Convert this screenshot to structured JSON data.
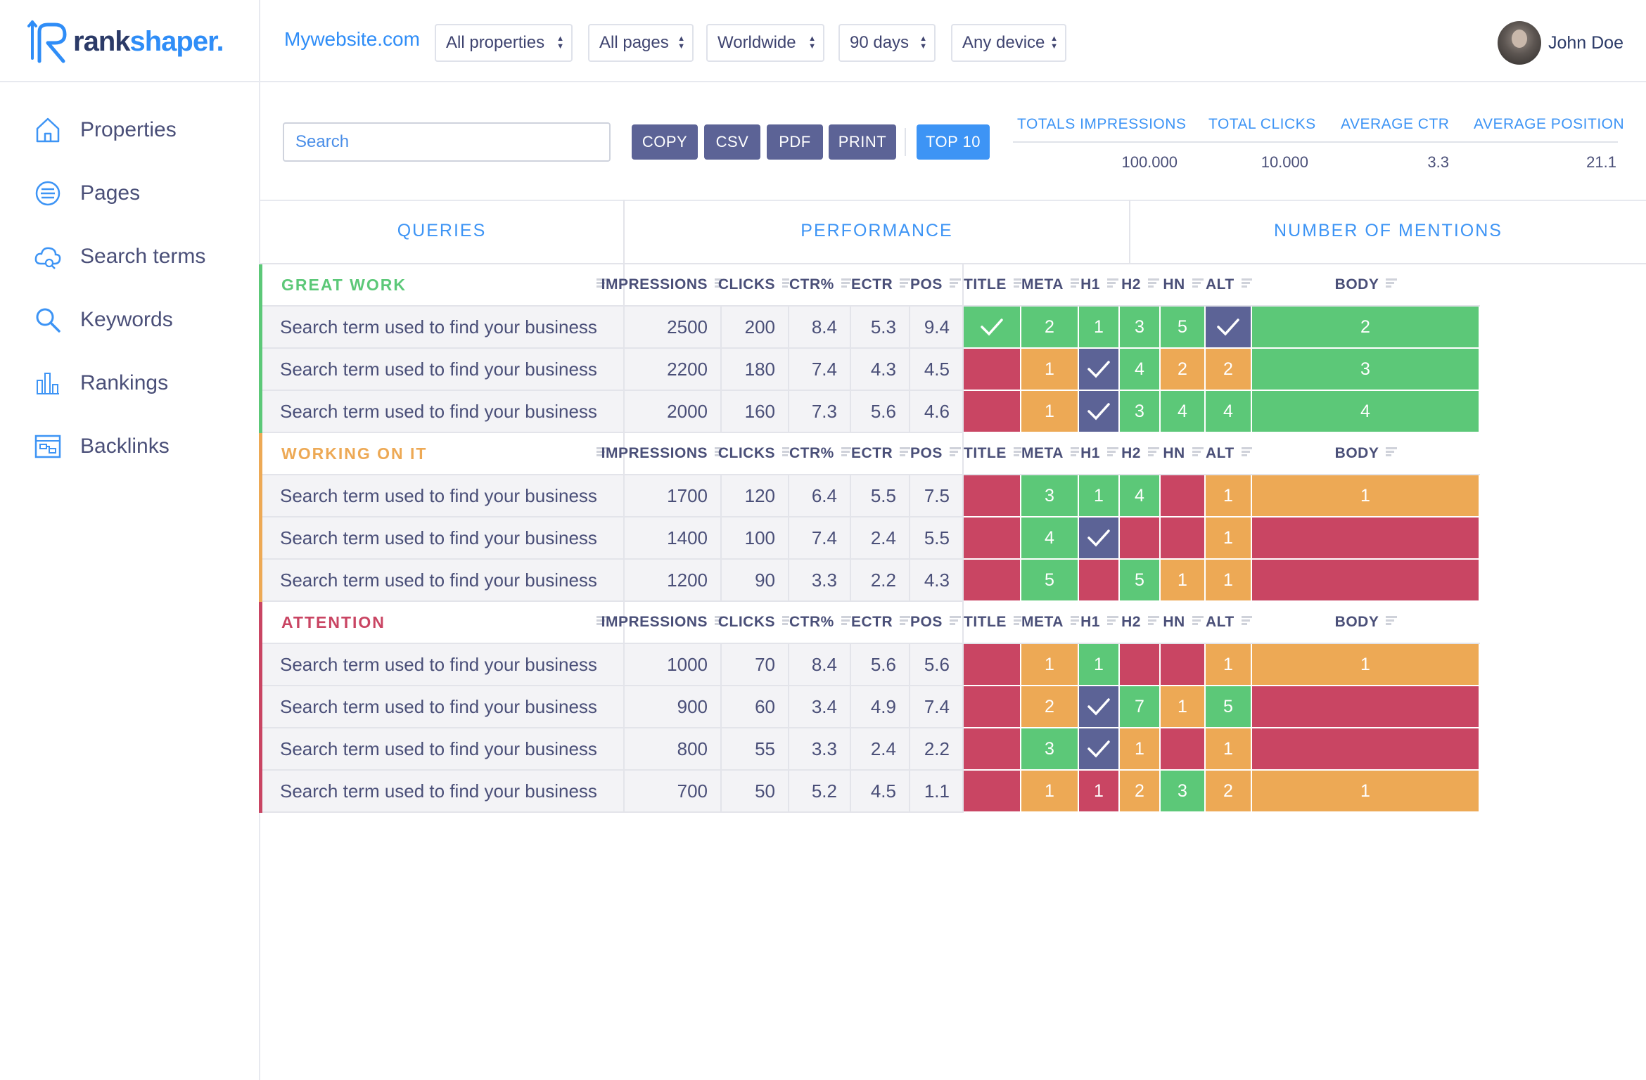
{
  "brand": {
    "name_part1": "rank",
    "name_part2": "shaper.",
    "blue": "#2f8df7",
    "navy": "#2b3a67"
  },
  "site": "Mywebsite.com",
  "filters": [
    "All properties",
    "All pages",
    "Worldwide",
    "90 days",
    "Any device"
  ],
  "user": {
    "name": "John Doe"
  },
  "nav": [
    {
      "label": "Properties",
      "icon": "home-icon"
    },
    {
      "label": "Pages",
      "icon": "list-circle-icon"
    },
    {
      "label": "Search terms",
      "icon": "cloud-icon"
    },
    {
      "label": "Keywords",
      "icon": "search-icon"
    },
    {
      "label": "Rankings",
      "icon": "bar-chart-icon"
    },
    {
      "label": "Backlinks",
      "icon": "link-board-icon"
    }
  ],
  "toolbar": {
    "search_placeholder": "Search",
    "buttons": [
      "COPY",
      "CSV",
      "PDF",
      "PRINT"
    ],
    "top_button": "TOP 10"
  },
  "totals": {
    "headers": [
      "TOTALS IMPRESSIONS",
      "TOTAL CLICKS",
      "AVERAGE CTR",
      "AVERAGE POSITION"
    ],
    "values": [
      "100.000",
      "10.000",
      "3.3",
      "21.1"
    ]
  },
  "table": {
    "group_headers": [
      "QUERIES",
      "PERFORMANCE",
      "NUMBER OF MENTIONS"
    ],
    "perf_columns": [
      "IMPRESSIONS",
      "CLICKS",
      "CTR%",
      "ECTR",
      "POS"
    ],
    "mention_columns": [
      "TITLE",
      "META",
      "H1",
      "H2",
      "HN",
      "ALT",
      "BODY"
    ],
    "colors": {
      "green": "#5cc878",
      "orange": "#eda955",
      "red": "#c94563",
      "navy": "#5c6396"
    },
    "sections": [
      {
        "title": "GREAT WORK",
        "color": "#5cc878",
        "rows": [
          {
            "query": "Search term used to find your business",
            "perf": [
              "2500",
              "200",
              "8.4",
              "5.3",
              "9.4"
            ],
            "mentions": [
              [
                "green",
                "check"
              ],
              [
                "green",
                "2"
              ],
              [
                "green",
                "1"
              ],
              [
                "green",
                "3"
              ],
              [
                "green",
                "5"
              ],
              [
                "navy",
                "check"
              ],
              [
                "green",
                "2"
              ]
            ]
          },
          {
            "query": "Search term used to find your business",
            "perf": [
              "2200",
              "180",
              "7.4",
              "4.3",
              "4.5"
            ],
            "mentions": [
              [
                "red",
                ""
              ],
              [
                "orange",
                "1"
              ],
              [
                "navy",
                "check"
              ],
              [
                "green",
                "4"
              ],
              [
                "orange",
                "2"
              ],
              [
                "orange",
                "2"
              ],
              [
                "green",
                "3"
              ]
            ]
          },
          {
            "query": "Search term used to find your business",
            "perf": [
              "2000",
              "160",
              "7.3",
              "5.6",
              "4.6"
            ],
            "mentions": [
              [
                "red",
                ""
              ],
              [
                "orange",
                "1"
              ],
              [
                "navy",
                "check"
              ],
              [
                "green",
                "3"
              ],
              [
                "green",
                "4"
              ],
              [
                "green",
                "4"
              ],
              [
                "green",
                "4"
              ]
            ]
          }
        ]
      },
      {
        "title": "WORKING ON IT",
        "color": "#eda955",
        "rows": [
          {
            "query": "Search term used to find your business",
            "perf": [
              "1700",
              "120",
              "6.4",
              "5.5",
              "7.5"
            ],
            "mentions": [
              [
                "red",
                ""
              ],
              [
                "green",
                "3"
              ],
              [
                "green",
                "1"
              ],
              [
                "green",
                "4"
              ],
              [
                "red",
                ""
              ],
              [
                "orange",
                "1"
              ],
              [
                "orange",
                "1"
              ]
            ]
          },
          {
            "query": "Search term used to find your business",
            "perf": [
              "1400",
              "100",
              "7.4",
              "2.4",
              "5.5"
            ],
            "mentions": [
              [
                "red",
                ""
              ],
              [
                "green",
                "4"
              ],
              [
                "navy",
                "check"
              ],
              [
                "red",
                ""
              ],
              [
                "red",
                ""
              ],
              [
                "orange",
                "1"
              ],
              [
                "red",
                ""
              ]
            ]
          },
          {
            "query": "Search term used to find your business",
            "perf": [
              "1200",
              "90",
              "3.3",
              "2.2",
              "4.3"
            ],
            "mentions": [
              [
                "red",
                ""
              ],
              [
                "green",
                "5"
              ],
              [
                "red",
                ""
              ],
              [
                "green",
                "5"
              ],
              [
                "orange",
                "1"
              ],
              [
                "orange",
                "1"
              ],
              [
                "red",
                ""
              ]
            ]
          }
        ]
      },
      {
        "title": "ATTENTION",
        "color": "#c94563",
        "rows": [
          {
            "query": "Search term used to find your business",
            "perf": [
              "1000",
              "70",
              "8.4",
              "5.6",
              "5.6"
            ],
            "mentions": [
              [
                "red",
                ""
              ],
              [
                "orange",
                "1"
              ],
              [
                "green",
                "1"
              ],
              [
                "red",
                ""
              ],
              [
                "red",
                ""
              ],
              [
                "orange",
                "1"
              ],
              [
                "orange",
                "1"
              ]
            ]
          },
          {
            "query": "Search term used to find your business",
            "perf": [
              "900",
              "60",
              "3.4",
              "4.9",
              "7.4"
            ],
            "mentions": [
              [
                "red",
                ""
              ],
              [
                "orange",
                "2"
              ],
              [
                "navy",
                "check"
              ],
              [
                "green",
                "7"
              ],
              [
                "orange",
                "1"
              ],
              [
                "green",
                "5"
              ],
              [
                "red",
                ""
              ]
            ]
          },
          {
            "query": "Search term used to find your business",
            "perf": [
              "800",
              "55",
              "3.3",
              "2.4",
              "2.2"
            ],
            "mentions": [
              [
                "red",
                ""
              ],
              [
                "green",
                "3"
              ],
              [
                "navy",
                "check"
              ],
              [
                "orange",
                "1"
              ],
              [
                "red",
                ""
              ],
              [
                "orange",
                "1"
              ],
              [
                "red",
                ""
              ]
            ]
          },
          {
            "query": "Search term used to find your business",
            "perf": [
              "700",
              "50",
              "5.2",
              "4.5",
              "1.1"
            ],
            "mentions": [
              [
                "red",
                ""
              ],
              [
                "orange",
                "1"
              ],
              [
                "red",
                "1"
              ],
              [
                "orange",
                "2"
              ],
              [
                "green",
                "3"
              ],
              [
                "orange",
                "2"
              ],
              [
                "orange",
                "1"
              ]
            ]
          }
        ]
      }
    ]
  }
}
